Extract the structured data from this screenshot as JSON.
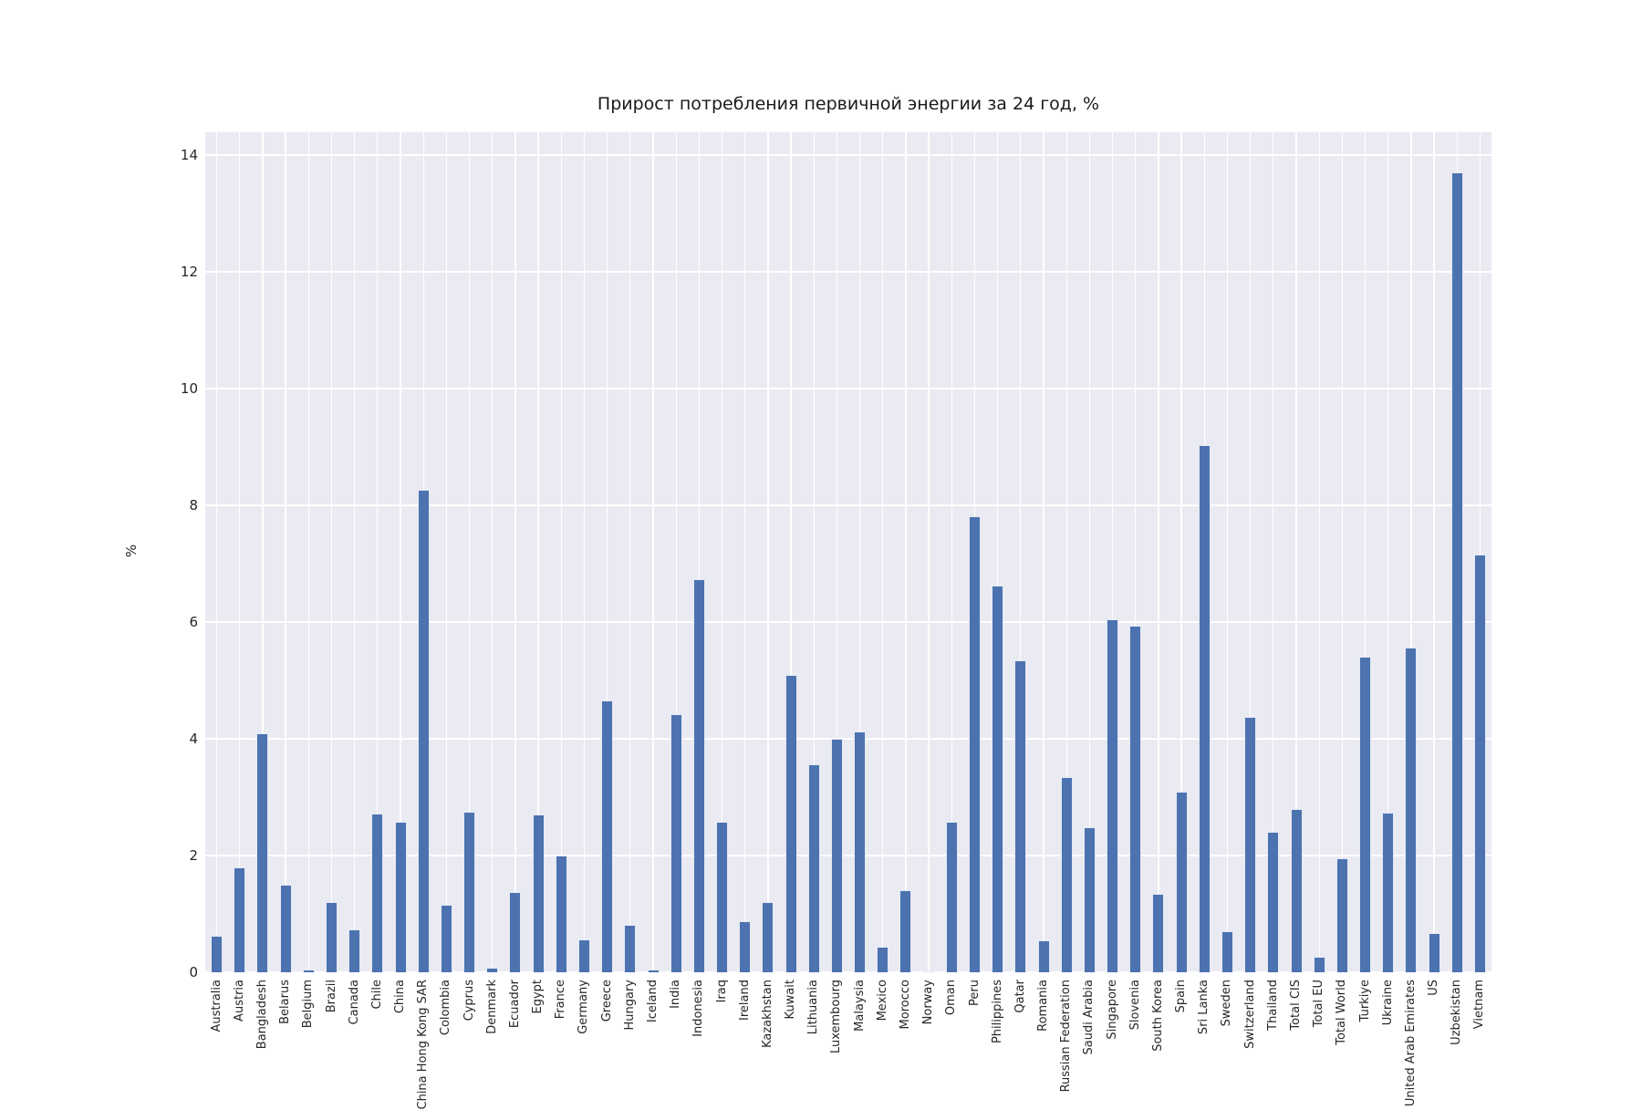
{
  "chart_data": {
    "type": "bar",
    "title": "Прирост потребления первичной энергии за 24 год, %",
    "xlabel": "",
    "ylabel": "%",
    "ylim": [
      0,
      14.39
    ],
    "yticks": [
      0,
      2,
      4,
      6,
      8,
      10,
      12,
      14
    ],
    "grid": true,
    "legend": false,
    "bar_color": "#4c72b0",
    "plot_bg_color": "#eaeaf2",
    "grid_color": "#ffffff",
    "categories": [
      "Australia",
      "Austria",
      "Bangladesh",
      "Belarus",
      "Belgium",
      "Brazil",
      "Canada",
      "Chile",
      "China",
      "China Hong Kong SAR",
      "Colombia",
      "Cyprus",
      "Denmark",
      "Ecuador",
      "Egypt",
      "France",
      "Germany",
      "Greece",
      "Hungary",
      "Iceland",
      "India",
      "Indonesia",
      "Iraq",
      "Ireland",
      "Kazakhstan",
      "Kuwait",
      "Lithuania",
      "Luxembourg",
      "Malaysia",
      "Mexico",
      "Morocco",
      "Norway",
      "Oman",
      "Peru",
      "Philippines",
      "Qatar",
      "Romania",
      "Russian Federation",
      "Saudi Arabia",
      "Singapore",
      "Slovenia",
      "South Korea",
      "Spain",
      "Sri Lanka",
      "Sweden",
      "Switzerland",
      "Thailand",
      "Total CIS",
      "Total EU",
      "Total World",
      "Turkiye",
      "Ukraine",
      "United Arab Emirates",
      "US",
      "Uzbekistan",
      "Vietnam"
    ],
    "values": [
      0.62,
      1.8,
      4.1,
      1.5,
      0.04,
      1.2,
      0.74,
      2.72,
      2.58,
      8.27,
      1.15,
      2.75,
      0.08,
      1.38,
      2.71,
      2.0,
      0.56,
      4.65,
      0.81,
      0.04,
      4.42,
      6.73,
      2.58,
      0.88,
      1.21,
      5.09,
      3.56,
      4.0,
      4.13,
      0.44,
      1.4,
      0.01,
      2.58,
      7.82,
      6.63,
      5.34,
      0.55,
      3.34,
      2.49,
      6.05,
      5.94,
      1.35,
      3.1,
      9.03,
      0.7,
      4.37,
      2.4,
      2.8,
      0.26,
      1.95,
      5.4,
      2.73,
      5.57,
      0.67,
      13.7,
      7.15
    ]
  }
}
